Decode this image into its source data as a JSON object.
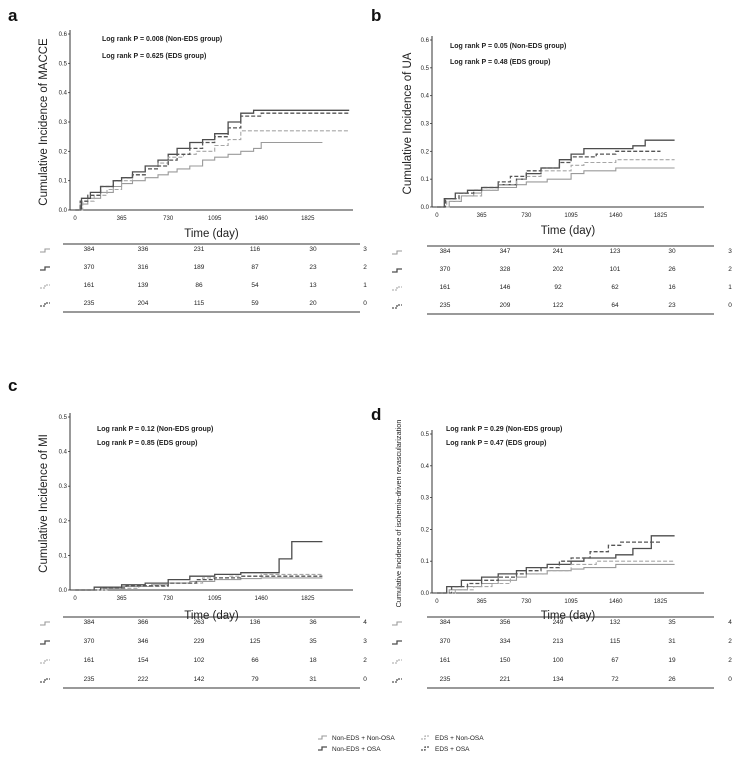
{
  "chart_data": [
    {
      "type": "line",
      "panel": "a",
      "ylabel": "Cumulative Incidence of MACCE",
      "xlabel": "Time (day)",
      "ylim": [
        0,
        0.6
      ],
      "xlim": [
        -40,
        2180
      ],
      "yticks": [
        0.0,
        0.1,
        0.2,
        0.3,
        0.4,
        0.5,
        0.6
      ],
      "ytick_labels": [
        "0.0",
        "0.1",
        "0.2",
        "0.3",
        "0.4",
        "0.5",
        "0.6"
      ],
      "xticks": [
        0,
        365,
        730,
        1095,
        1460,
        1825
      ],
      "xtick_labels": [
        "0",
        "365",
        "730",
        "1095",
        "1460",
        "1825"
      ],
      "pvalues": [
        "Log rank P = 0.008 (Non-EDS group)",
        "Log rank P = 0.625 (EDS group)"
      ],
      "series": [
        {
          "name": "Non-EDS + Non-OSA",
          "style": "solid-light",
          "x": [
            0,
            40,
            100,
            200,
            300,
            365,
            450,
            550,
            650,
            730,
            800,
            900,
            1000,
            1095,
            1200,
            1300,
            1400,
            1460,
            1600,
            1825,
            1940
          ],
          "y": [
            0.0,
            0.02,
            0.04,
            0.06,
            0.08,
            0.09,
            0.1,
            0.11,
            0.12,
            0.13,
            0.14,
            0.15,
            0.17,
            0.18,
            0.19,
            0.2,
            0.21,
            0.23,
            0.23,
            0.23,
            0.23
          ]
        },
        {
          "name": "Non-EDS + OSA",
          "style": "solid-dark",
          "x": [
            0,
            50,
            120,
            200,
            300,
            365,
            450,
            550,
            650,
            730,
            800,
            900,
            1000,
            1095,
            1200,
            1300,
            1400,
            1460,
            1600,
            1825,
            2150
          ],
          "y": [
            0.0,
            0.04,
            0.06,
            0.08,
            0.1,
            0.11,
            0.13,
            0.15,
            0.17,
            0.19,
            0.21,
            0.23,
            0.24,
            0.26,
            0.3,
            0.33,
            0.34,
            0.34,
            0.34,
            0.34,
            0.34
          ]
        },
        {
          "name": "EDS + Non-OSA",
          "style": "dashed-light",
          "x": [
            0,
            60,
            150,
            250,
            365,
            450,
            550,
            650,
            730,
            850,
            950,
            1095,
            1200,
            1300,
            1460,
            1600,
            1825,
            2150
          ],
          "y": [
            0.0,
            0.03,
            0.05,
            0.07,
            0.1,
            0.12,
            0.14,
            0.16,
            0.18,
            0.19,
            0.2,
            0.22,
            0.24,
            0.27,
            0.27,
            0.27,
            0.27,
            0.27
          ]
        },
        {
          "name": "EDS + OSA",
          "style": "dashed-dark",
          "x": [
            0,
            40,
            100,
            200,
            300,
            365,
            450,
            550,
            650,
            730,
            800,
            900,
            1000,
            1095,
            1200,
            1300,
            1460,
            1600,
            1825,
            2150
          ],
          "y": [
            0.0,
            0.03,
            0.05,
            0.08,
            0.1,
            0.11,
            0.12,
            0.14,
            0.15,
            0.17,
            0.19,
            0.21,
            0.23,
            0.25,
            0.28,
            0.32,
            0.33,
            0.33,
            0.33,
            0.33
          ]
        }
      ],
      "risk_table": [
        [
          "384",
          "336",
          "231",
          "116",
          "30",
          "3"
        ],
        [
          "370",
          "316",
          "189",
          "87",
          "23",
          "2"
        ],
        [
          "161",
          "139",
          "86",
          "54",
          "13",
          "1"
        ],
        [
          "235",
          "204",
          "115",
          "59",
          "20",
          "0"
        ]
      ]
    },
    {
      "type": "line",
      "panel": "b",
      "ylabel": "Cumulative Incidence of UA",
      "xlabel": "Time (day)",
      "ylim": [
        0,
        0.6
      ],
      "xlim": [
        -40,
        2180
      ],
      "yticks": [
        0.0,
        0.1,
        0.2,
        0.3,
        0.4,
        0.5,
        0.6
      ],
      "ytick_labels": [
        "0.0",
        "0.1",
        "0.2",
        "0.3",
        "0.4",
        "0.5",
        "0.6"
      ],
      "xticks": [
        0,
        365,
        730,
        1095,
        1460,
        1825
      ],
      "xtick_labels": [
        "0",
        "365",
        "730",
        "1095",
        "1460",
        "1825"
      ],
      "pvalues": [
        "Log rank P = 0.05 (Non-EDS group)",
        "Log rank P = 0.48 (EDS group)"
      ],
      "series": [
        {
          "name": "Non-EDS + Non-OSA",
          "style": "solid-light",
          "x": [
            0,
            100,
            200,
            300,
            365,
            500,
            650,
            730,
            900,
            1095,
            1200,
            1460,
            1600,
            1825,
            1940
          ],
          "y": [
            0.0,
            0.02,
            0.04,
            0.05,
            0.06,
            0.07,
            0.08,
            0.09,
            0.1,
            0.12,
            0.13,
            0.14,
            0.14,
            0.14,
            0.14
          ]
        },
        {
          "name": "Non-EDS + OSA",
          "style": "solid-dark",
          "x": [
            0,
            60,
            150,
            250,
            365,
            500,
            650,
            730,
            850,
            1000,
            1095,
            1200,
            1460,
            1600,
            1700,
            1825,
            1940
          ],
          "y": [
            0.0,
            0.03,
            0.05,
            0.06,
            0.07,
            0.08,
            0.1,
            0.12,
            0.14,
            0.17,
            0.19,
            0.21,
            0.21,
            0.22,
            0.24,
            0.24,
            0.24
          ]
        },
        {
          "name": "EDS + Non-OSA",
          "style": "dashed-light",
          "x": [
            0,
            80,
            200,
            365,
            500,
            650,
            730,
            850,
            1095,
            1200,
            1460,
            1825,
            1940
          ],
          "y": [
            0.0,
            0.02,
            0.04,
            0.06,
            0.08,
            0.1,
            0.11,
            0.13,
            0.15,
            0.16,
            0.17,
            0.17,
            0.17
          ]
        },
        {
          "name": "EDS + OSA",
          "style": "dashed-dark",
          "x": [
            0,
            70,
            180,
            300,
            365,
            500,
            600,
            730,
            850,
            1000,
            1095,
            1300,
            1460,
            1700,
            1825
          ],
          "y": [
            0.0,
            0.03,
            0.05,
            0.06,
            0.07,
            0.09,
            0.11,
            0.13,
            0.14,
            0.16,
            0.18,
            0.19,
            0.2,
            0.2,
            0.2
          ]
        }
      ],
      "risk_table": [
        [
          "384",
          "347",
          "241",
          "123",
          "30",
          "3"
        ],
        [
          "370",
          "328",
          "202",
          "101",
          "26",
          "2"
        ],
        [
          "161",
          "146",
          "92",
          "62",
          "16",
          "1"
        ],
        [
          "235",
          "209",
          "122",
          "64",
          "23",
          "0"
        ]
      ]
    },
    {
      "type": "line",
      "panel": "c",
      "ylabel": "Cumulative Incidence of MI",
      "xlabel": "Time (day)",
      "ylim": [
        0,
        0.5
      ],
      "xlim": [
        -40,
        2180
      ],
      "yticks": [
        0.0,
        0.1,
        0.2,
        0.3,
        0.4,
        0.5
      ],
      "ytick_labels": [
        "0.0",
        "0.1",
        "0.2",
        "0.3",
        "0.4",
        "0.5"
      ],
      "xticks": [
        0,
        365,
        730,
        1095,
        1460,
        1825
      ],
      "xtick_labels": [
        "0",
        "365",
        "730",
        "1095",
        "1460",
        "1825"
      ],
      "pvalues": [
        "Log rank P = 0.12 (Non-EDS group)",
        "Log rank P = 0.85 (EDS group)"
      ],
      "series": [
        {
          "name": "Non-EDS + Non-OSA",
          "style": "solid-light",
          "x": [
            0,
            200,
            365,
            600,
            730,
            900,
            1095,
            1300,
            1460,
            1600,
            1825,
            1940
          ],
          "y": [
            0.0,
            0.005,
            0.01,
            0.015,
            0.02,
            0.025,
            0.03,
            0.033,
            0.035,
            0.035,
            0.035,
            0.035
          ]
        },
        {
          "name": "Non-EDS + OSA",
          "style": "solid-dark",
          "x": [
            0,
            150,
            365,
            550,
            730,
            900,
            1095,
            1300,
            1460,
            1600,
            1700,
            1825,
            1940
          ],
          "y": [
            0.0,
            0.008,
            0.015,
            0.02,
            0.03,
            0.04,
            0.045,
            0.05,
            0.05,
            0.09,
            0.14,
            0.14,
            0.14
          ]
        },
        {
          "name": "EDS + Non-OSA",
          "style": "dashed-light",
          "x": [
            0,
            250,
            500,
            730,
            1000,
            1200,
            1460,
            1825,
            1940
          ],
          "y": [
            0.0,
            0.005,
            0.01,
            0.02,
            0.035,
            0.04,
            0.045,
            0.045,
            0.045
          ]
        },
        {
          "name": "EDS + OSA",
          "style": "dashed-dark",
          "x": [
            0,
            200,
            400,
            730,
            950,
            1095,
            1300,
            1460,
            1700,
            1940
          ],
          "y": [
            0.0,
            0.006,
            0.012,
            0.02,
            0.03,
            0.035,
            0.04,
            0.04,
            0.04,
            0.04
          ]
        }
      ],
      "risk_table": [
        [
          "384",
          "366",
          "263",
          "136",
          "36",
          "4"
        ],
        [
          "370",
          "346",
          "229",
          "125",
          "35",
          "3"
        ],
        [
          "161",
          "154",
          "102",
          "66",
          "18",
          "2"
        ],
        [
          "235",
          "222",
          "142",
          "79",
          "31",
          "0"
        ]
      ]
    },
    {
      "type": "line",
      "panel": "d",
      "ylabel": "Cumulative Incidence of ischemia-driven revascularization",
      "xlabel": "Time (day)",
      "ylim": [
        0,
        0.5
      ],
      "xlim": [
        -40,
        2180
      ],
      "yticks": [
        0.0,
        0.1,
        0.2,
        0.3,
        0.4,
        0.5
      ],
      "ytick_labels": [
        "0.0",
        "0.1",
        "0.2",
        "0.3",
        "0.4",
        "0.5"
      ],
      "xticks": [
        0,
        365,
        730,
        1095,
        1460,
        1825
      ],
      "xtick_labels": [
        "0",
        "365",
        "730",
        "1095",
        "1460",
        "1825"
      ],
      "pvalues": [
        "Log rank P = 0.29 (Non-EDS group)",
        "Log rank P = 0.47 (EDS group)"
      ],
      "series": [
        {
          "name": "Non-EDS + Non-OSA",
          "style": "solid-light",
          "x": [
            0,
            100,
            250,
            365,
            500,
            650,
            730,
            900,
            1095,
            1200,
            1460,
            1600,
            1825,
            1940
          ],
          "y": [
            0.0,
            0.01,
            0.02,
            0.03,
            0.04,
            0.05,
            0.06,
            0.07,
            0.075,
            0.08,
            0.09,
            0.09,
            0.09,
            0.09
          ]
        },
        {
          "name": "Non-EDS + OSA",
          "style": "solid-dark",
          "x": [
            0,
            80,
            200,
            365,
            500,
            650,
            730,
            900,
            1095,
            1200,
            1460,
            1600,
            1750,
            1825,
            1940
          ],
          "y": [
            0.0,
            0.02,
            0.04,
            0.05,
            0.06,
            0.07,
            0.08,
            0.09,
            0.1,
            0.11,
            0.12,
            0.14,
            0.18,
            0.18,
            0.18
          ]
        },
        {
          "name": "EDS + Non-OSA",
          "style": "dashed-light",
          "x": [
            0,
            150,
            300,
            450,
            600,
            730,
            900,
            1095,
            1300,
            1460,
            1700,
            1825,
            1940
          ],
          "y": [
            0.0,
            0.01,
            0.02,
            0.03,
            0.05,
            0.06,
            0.07,
            0.09,
            0.1,
            0.1,
            0.1,
            0.1,
            0.1
          ]
        },
        {
          "name": "EDS + OSA",
          "style": "dashed-dark",
          "x": [
            0,
            120,
            250,
            365,
            500,
            650,
            730,
            850,
            1000,
            1095,
            1250,
            1400,
            1500,
            1825
          ],
          "y": [
            0.0,
            0.02,
            0.03,
            0.04,
            0.05,
            0.06,
            0.07,
            0.08,
            0.1,
            0.11,
            0.13,
            0.15,
            0.16,
            0.16
          ]
        }
      ],
      "risk_table": [
        [
          "384",
          "356",
          "249",
          "132",
          "35",
          "4"
        ],
        [
          "370",
          "334",
          "213",
          "115",
          "31",
          "2"
        ],
        [
          "161",
          "150",
          "100",
          "67",
          "19",
          "2"
        ],
        [
          "235",
          "221",
          "134",
          "72",
          "26",
          "0"
        ]
      ]
    }
  ],
  "legend": {
    "items": [
      {
        "label": "Non-EDS + Non-OSA",
        "style": "solid-light"
      },
      {
        "label": "Non-EDS + OSA",
        "style": "solid-dark"
      },
      {
        "label": "EDS + Non-OSA",
        "style": "dashed-light"
      },
      {
        "label": "EDS + OSA",
        "style": "dashed-dark"
      }
    ]
  },
  "colors": {
    "solid-light": "#9a9a9a",
    "solid-dark": "#4d4d4d",
    "dashed-light": "#a6a6a6",
    "dashed-dark": "#555555",
    "axis": "#333333"
  }
}
